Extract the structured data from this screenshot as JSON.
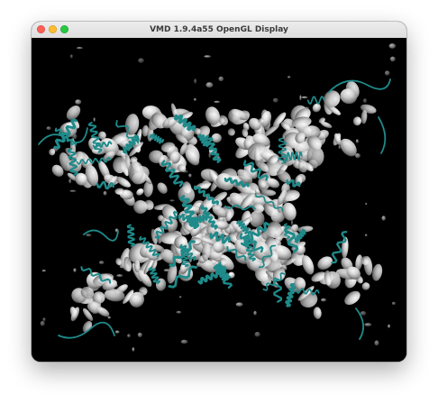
{
  "window": {
    "title": "VMD 1.9.4a55 OpenGL Display",
    "controls": {
      "close_color": "#ff5f57",
      "minimize_color": "#febc2e",
      "maximize_color": "#28c840"
    }
  },
  "display": {
    "background": "#000000",
    "render": {
      "surface_name": "density-isosurface",
      "surface_color": "#d8d8d8",
      "cartoon_name": "protein-cartoon-ribbons",
      "cartoon_color": "#1f8a8a"
    }
  }
}
